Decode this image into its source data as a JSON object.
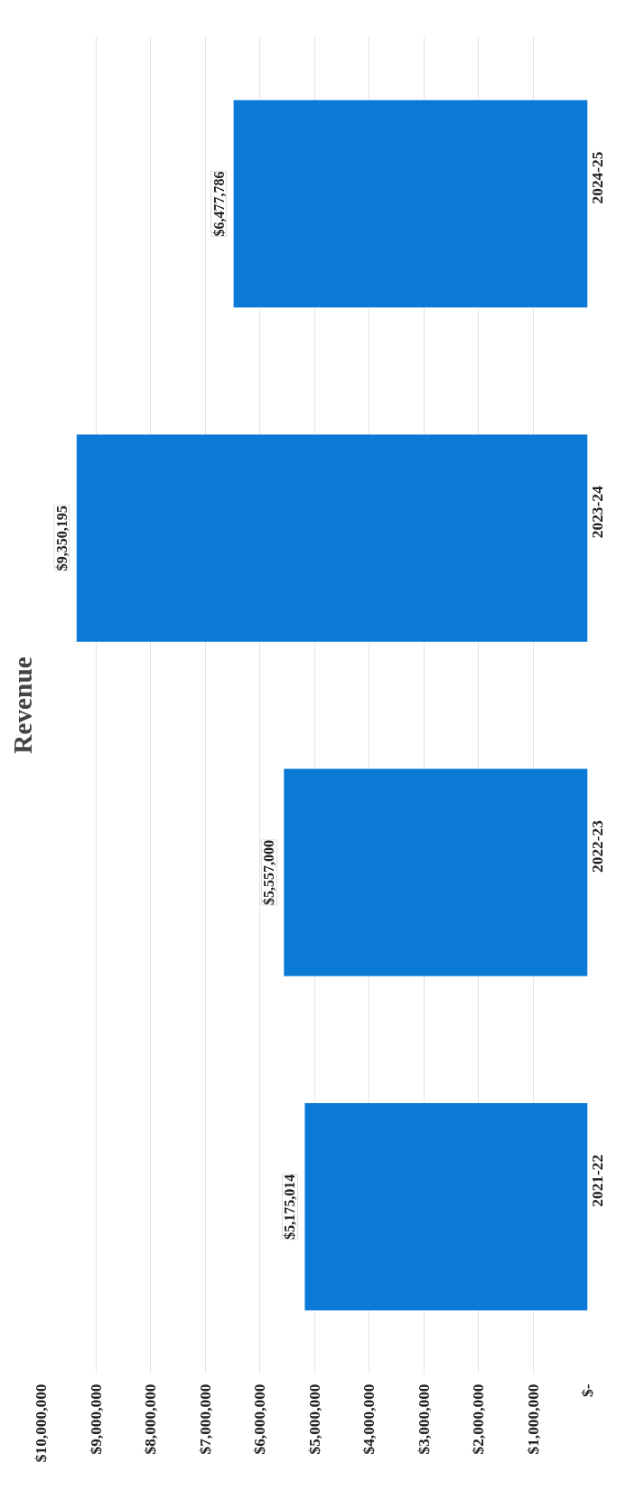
{
  "chart_data": {
    "type": "bar",
    "orientation": "horizontal",
    "title": "Revenue",
    "categories": [
      "2024-25",
      "2023-24",
      "2022-23",
      "2021-22"
    ],
    "values": [
      6477786,
      9350195,
      5557000,
      5175014
    ],
    "value_labels": [
      "$6,477,786",
      "$9,350,195",
      "$5,557,000",
      "$5,175,014"
    ],
    "color": "#0a7ad6",
    "xlim": [
      10000000,
      0
    ],
    "xticks": [
      {
        "value": 0,
        "label": "$-"
      },
      {
        "value": 1000000,
        "label": "$1,000,000"
      },
      {
        "value": 2000000,
        "label": "$2,000,000"
      },
      {
        "value": 3000000,
        "label": "$3,000,000"
      },
      {
        "value": 4000000,
        "label": "$4,000,000"
      },
      {
        "value": 5000000,
        "label": "$5,000,000"
      },
      {
        "value": 6000000,
        "label": "$6,000,000"
      },
      {
        "value": 7000000,
        "label": "$7,000,000"
      },
      {
        "value": 8000000,
        "label": "$8,000,000"
      },
      {
        "value": 9000000,
        "label": "$9,000,000"
      },
      {
        "value": 10000000,
        "label": "$10,000,000"
      }
    ],
    "grid": "x"
  }
}
